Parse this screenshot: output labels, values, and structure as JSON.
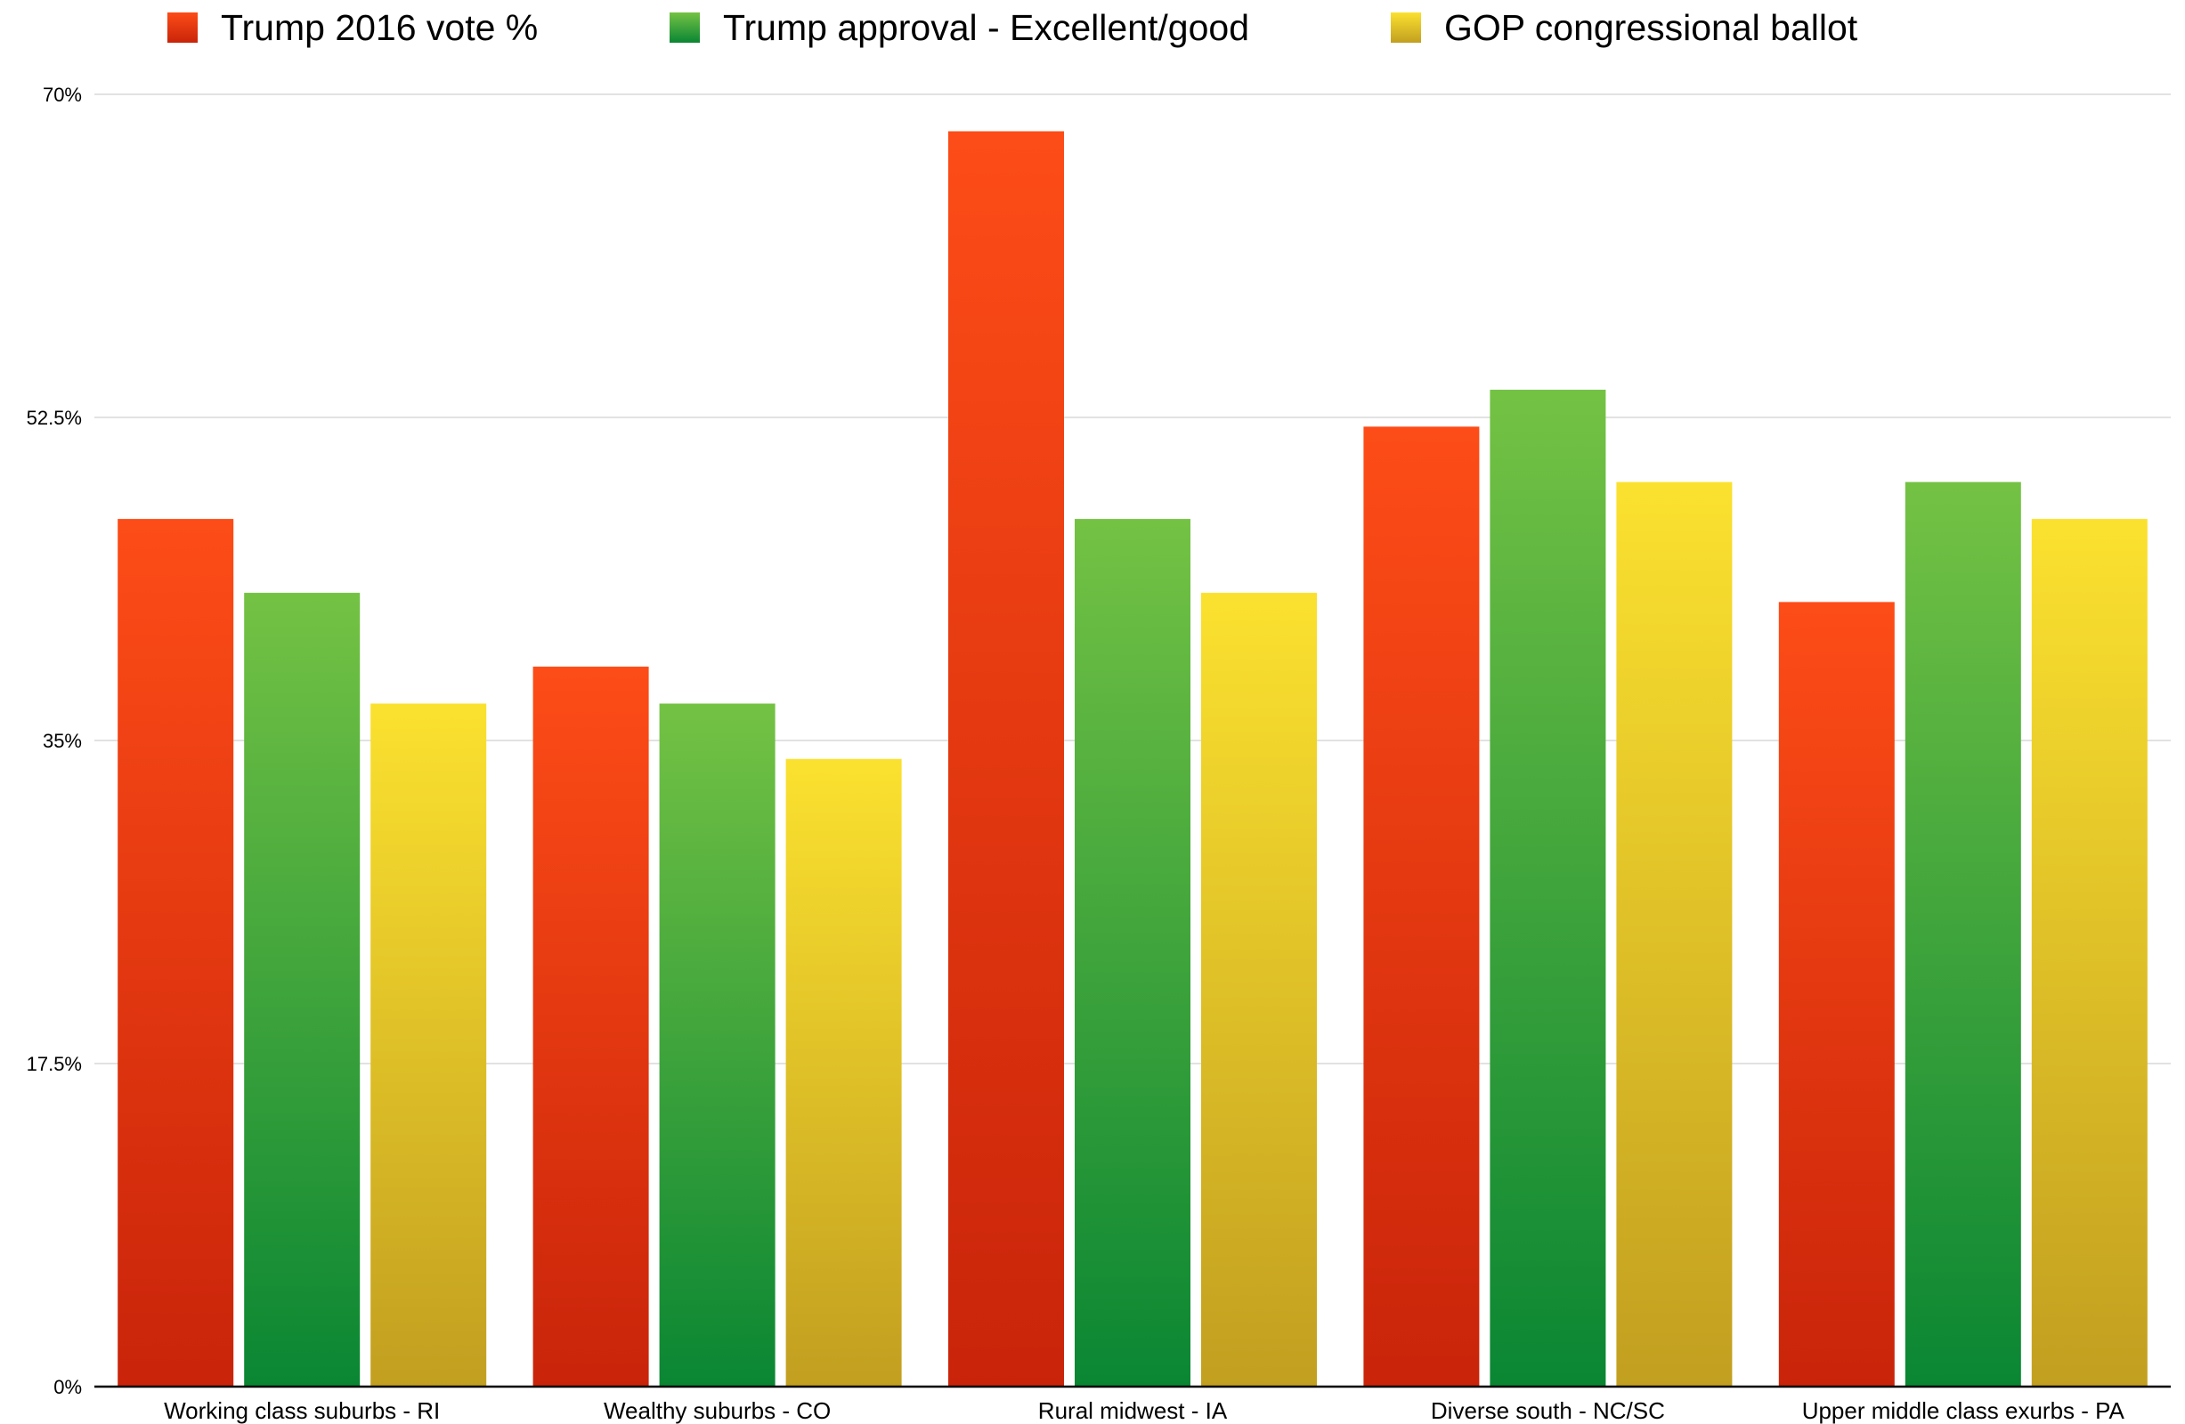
{
  "chart_data": {
    "type": "bar",
    "categories": [
      "Working class suburbs - RI",
      "Wealthy suburbs - CO",
      "Rural midwest - IA",
      "Diverse south - NC/SC",
      "Upper middle class exurbs - PA"
    ],
    "series": [
      {
        "name": "Trump 2016 vote %",
        "color_top": "#fd4c17",
        "color_bottom": "#c9240a",
        "values": [
          47,
          39,
          68,
          52,
          42.5
        ]
      },
      {
        "name": "Trump approval - Excellent/good",
        "color_top": "#74c244",
        "color_bottom": "#0a8633",
        "values": [
          43,
          37,
          47,
          54,
          49
        ]
      },
      {
        "name": "GOP congressional ballot",
        "color_top": "#fbe12f",
        "color_bottom": "#c29f20",
        "values": [
          37,
          34,
          43,
          49,
          47
        ]
      }
    ],
    "y_ticks": [
      "0%",
      "17.5%",
      "35%",
      "52.5%",
      "70%"
    ],
    "y_tick_values": [
      0,
      17.5,
      35,
      52.5,
      70
    ],
    "ylim": [
      0,
      70
    ],
    "grid": true,
    "legend_position": "top",
    "title": "",
    "xlabel": "",
    "ylabel": ""
  }
}
